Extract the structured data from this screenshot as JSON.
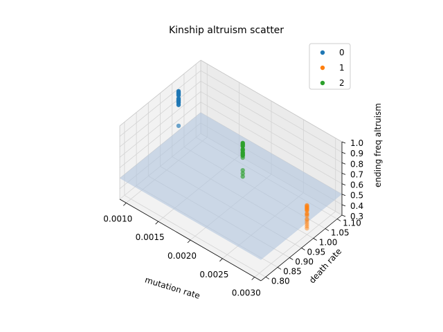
{
  "chart_data": {
    "type": "scatter",
    "projection": "3d",
    "title": "Kinship altruism scatter",
    "xlabel": "mutation rate",
    "ylabel": "death rate",
    "zlabel": "ending freq altruism",
    "xlim": [
      0.0009,
      0.0031
    ],
    "ylim": [
      0.78,
      1.12
    ],
    "zlim": [
      0.3,
      1.0
    ],
    "xticks": [
      "0.0010",
      "0.0015",
      "0.0020",
      "0.0025",
      "0.0030"
    ],
    "yticks": [
      "0.80",
      "0.85",
      "0.90",
      "0.95",
      "1.00",
      "1.05",
      "1.10"
    ],
    "zticks": [
      "0.3",
      "0.4",
      "0.5",
      "0.6",
      "0.7",
      "0.8",
      "0.9",
      "1.0"
    ],
    "grid": true,
    "legend_position": "top-right",
    "surface": {
      "description": "fitted plane",
      "color": "#b0c4de",
      "corners": [
        {
          "x": 0.0009,
          "y": 0.78,
          "z": 0.5
        },
        {
          "x": 0.0031,
          "y": 0.78,
          "z": 0.5
        },
        {
          "x": 0.0031,
          "y": 1.12,
          "z": 0.5
        },
        {
          "x": 0.0009,
          "y": 1.12,
          "z": 0.5
        }
      ]
    },
    "series": [
      {
        "name": "0",
        "color": "#1f77b4",
        "x": 0.001,
        "y": 1.0,
        "z": [
          0.96,
          0.95,
          0.94,
          0.93,
          0.92,
          0.89,
          0.88,
          0.87,
          0.86,
          0.85,
          0.83,
          0.63
        ]
      },
      {
        "name": "1",
        "color": "#ff7f0e",
        "x": 0.003,
        "y": 1.0,
        "z": [
          0.58,
          0.57,
          0.56,
          0.55,
          0.54,
          0.53,
          0.5,
          0.49,
          0.48,
          0.45,
          0.44,
          0.42,
          0.4,
          0.38,
          0.36
        ]
      },
      {
        "name": "2",
        "color": "#2ca02c",
        "x": 0.002,
        "y": 1.0,
        "z": [
          0.82,
          0.81,
          0.8,
          0.79,
          0.76,
          0.75,
          0.73,
          0.72,
          0.71,
          0.7,
          0.68,
          0.56,
          0.53,
          0.5
        ]
      }
    ]
  }
}
